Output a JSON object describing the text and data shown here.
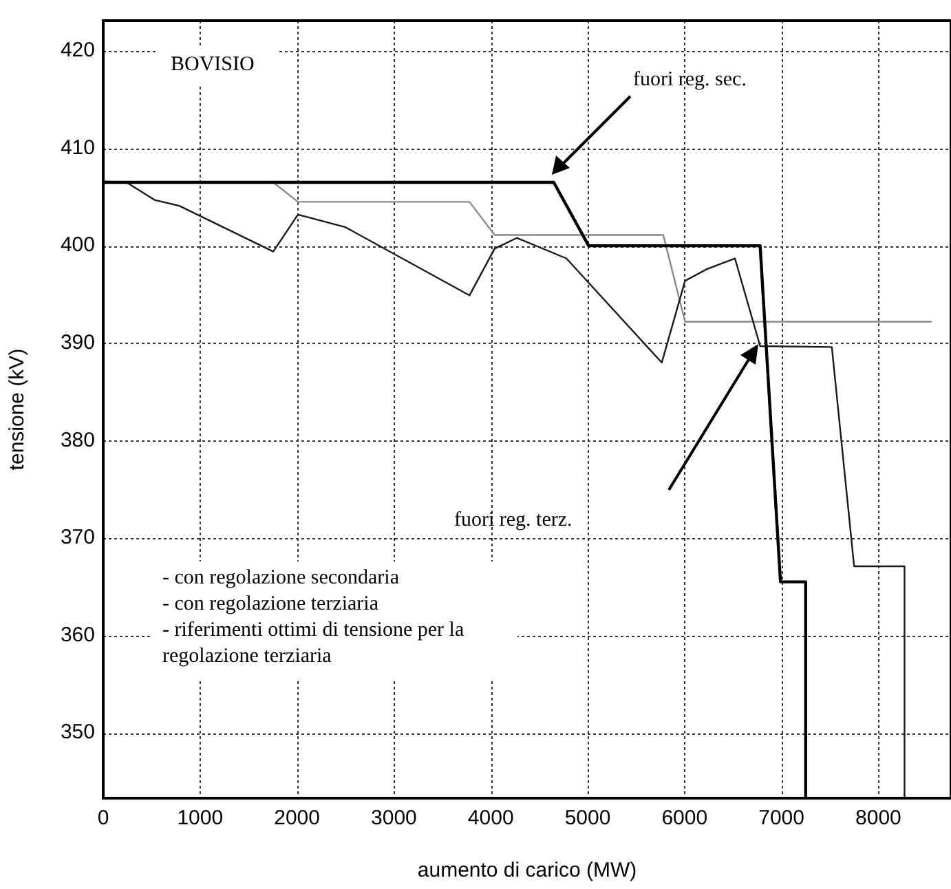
{
  "chart_data": {
    "type": "line",
    "xlabel": "aumento di carico (MW)",
    "ylabel": "tensione (kV)",
    "xlim": [
      0,
      8750
    ],
    "ylim": [
      343.3,
      423.1
    ],
    "xticks": [
      0,
      1000,
      2000,
      3000,
      4000,
      5000,
      6000,
      7000,
      8000
    ],
    "yticks": [
      350,
      360,
      370,
      380,
      390,
      400,
      410,
      420
    ],
    "grid": true,
    "legend": false,
    "marker": "none",
    "line_style": "solid",
    "series": [
      {
        "color": "#000000",
        "x": [
          0,
          4650,
          5010,
          6780,
          6990,
          7250,
          7250
        ],
        "values": [
          406.5,
          406.5,
          400,
          400,
          365.5,
          365.5,
          343.3
        ]
      },
      {
        "color": "#1a1a1a",
        "x": [
          0,
          240,
          530,
          785,
          1755,
          2010,
          2500,
          3780,
          4040,
          4270,
          4780,
          5765,
          6005,
          6230,
          6520,
          6780,
          7520,
          7750,
          8270,
          8270
        ],
        "values": [
          406.6,
          406.5,
          404.7,
          404.1,
          399.4,
          403.2,
          401.9,
          394.9,
          399.7,
          400.8,
          398.7,
          388.0,
          396.4,
          397.6,
          398.7,
          389.7,
          389.6,
          367.1,
          367.1,
          343.3
        ]
      },
      {
        "color": "#8a8a8a",
        "x": [
          0,
          1755,
          2010,
          3780,
          4040,
          5780,
          6005,
          8545
        ],
        "values": [
          406.5,
          406.5,
          404.5,
          404.5,
          401.1,
          401.1,
          392.2,
          392.2
        ]
      }
    ],
    "annotations": [
      "fuori reg. sec.",
      "fuori reg. terz.",
      "BOVISIO",
      "- con regolazione secondaria",
      "- con regolazione terziaria",
      "- riferimenti ottimi di tensione per la regolazione terziaria"
    ]
  }
}
